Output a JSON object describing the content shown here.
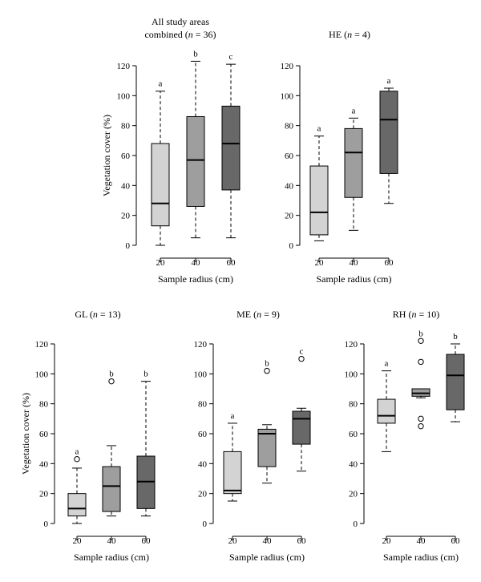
{
  "chart_data": [
    {
      "id": "all",
      "type": "box",
      "title_lines": [
        "All study areas",
        "combined (n = 36)"
      ],
      "title_rich": [
        [
          {
            "t": "All study areas",
            "i": false
          }
        ],
        [
          {
            "t": "combined (",
            "i": false
          },
          {
            "t": "n",
            "i": true
          },
          {
            "t": " = 36)",
            "i": false
          }
        ]
      ],
      "xlabel": "Sample radius (cm)",
      "ylabel": "Vegetation cover (%)",
      "categories": [
        "20",
        "40",
        "60"
      ],
      "yticks": [
        0,
        20,
        40,
        60,
        80,
        100,
        120
      ],
      "ylim": [
        0,
        120
      ],
      "boxes": [
        {
          "category": "20",
          "whisker_low": 0,
          "q1": 13,
          "median": 28,
          "q3": 68,
          "whisker_high": 103,
          "outliers": [],
          "letter": "a",
          "fill": "#d3d3d3"
        },
        {
          "category": "40",
          "whisker_low": 5,
          "q1": 26,
          "median": 57,
          "q3": 86,
          "whisker_high": 123,
          "outliers": [],
          "letter": "b",
          "fill": "#9e9e9e"
        },
        {
          "category": "60",
          "whisker_low": 5,
          "q1": 37,
          "median": 68,
          "q3": 93,
          "whisker_high": 121,
          "outliers": [],
          "letter": "c",
          "fill": "#686868"
        }
      ]
    },
    {
      "id": "he",
      "type": "box",
      "title_lines": [
        "HE (n = 4)"
      ],
      "title_rich": [
        [
          {
            "t": "HE (",
            "i": false
          },
          {
            "t": "n",
            "i": true
          },
          {
            "t": " = 4)",
            "i": false
          }
        ]
      ],
      "xlabel": "Sample radius (cm)",
      "ylabel": "",
      "categories": [
        "20",
        "40",
        "60"
      ],
      "yticks": [
        0,
        20,
        40,
        60,
        80,
        100,
        120
      ],
      "ylim": [
        0,
        120
      ],
      "boxes": [
        {
          "category": "20",
          "whisker_low": 3,
          "q1": 7,
          "median": 22,
          "q3": 53,
          "whisker_high": 73,
          "outliers": [],
          "letter": "a",
          "fill": "#d3d3d3"
        },
        {
          "category": "40",
          "whisker_low": 10,
          "q1": 32,
          "median": 62,
          "q3": 78,
          "whisker_high": 85,
          "outliers": [],
          "letter": "a",
          "fill": "#9e9e9e"
        },
        {
          "category": "60",
          "whisker_low": 28,
          "q1": 48,
          "median": 84,
          "q3": 103,
          "whisker_high": 105,
          "outliers": [],
          "letter": "a",
          "fill": "#686868"
        }
      ]
    },
    {
      "id": "gl",
      "type": "box",
      "title_lines": [
        "GL (n = 13)"
      ],
      "title_rich": [
        [
          {
            "t": "GL (",
            "i": false
          },
          {
            "t": "n",
            "i": true
          },
          {
            "t": " = 13)",
            "i": false
          }
        ]
      ],
      "xlabel": "Sample radius (cm)",
      "ylabel": "Vegetation cover (%)",
      "categories": [
        "20",
        "40",
        "60"
      ],
      "yticks": [
        0,
        20,
        40,
        60,
        80,
        100,
        120
      ],
      "ylim": [
        0,
        120
      ],
      "boxes": [
        {
          "category": "20",
          "whisker_low": 0,
          "q1": 5,
          "median": 10,
          "q3": 20,
          "whisker_high": 37,
          "outliers": [
            43
          ],
          "letter": "a",
          "fill": "#d3d3d3"
        },
        {
          "category": "40",
          "whisker_low": 5,
          "q1": 8,
          "median": 25,
          "q3": 38,
          "whisker_high": 52,
          "outliers": [
            95
          ],
          "letter": "b",
          "fill": "#9e9e9e"
        },
        {
          "category": "60",
          "whisker_low": 5,
          "q1": 10,
          "median": 28,
          "q3": 45,
          "whisker_high": 95,
          "outliers": [],
          "letter": "b",
          "fill": "#686868"
        }
      ]
    },
    {
      "id": "me",
      "type": "box",
      "title_lines": [
        "ME (n = 9)"
      ],
      "title_rich": [
        [
          {
            "t": "ME (",
            "i": false
          },
          {
            "t": "n",
            "i": true
          },
          {
            "t": " = 9)",
            "i": false
          }
        ]
      ],
      "xlabel": "Sample radius (cm)",
      "ylabel": "",
      "categories": [
        "20",
        "40",
        "60"
      ],
      "yticks": [
        0,
        20,
        40,
        60,
        80,
        100,
        120
      ],
      "ylim": [
        0,
        120
      ],
      "boxes": [
        {
          "category": "20",
          "whisker_low": 15,
          "q1": 20,
          "median": 22,
          "q3": 48,
          "whisker_high": 67,
          "outliers": [],
          "letter": "a",
          "fill": "#d3d3d3"
        },
        {
          "category": "40",
          "whisker_low": 27,
          "q1": 38,
          "median": 60,
          "q3": 63,
          "whisker_high": 66,
          "outliers": [
            102
          ],
          "letter": "b",
          "fill": "#9e9e9e"
        },
        {
          "category": "60",
          "whisker_low": 35,
          "q1": 53,
          "median": 70,
          "q3": 75,
          "whisker_high": 77,
          "outliers": [
            110
          ],
          "letter": "c",
          "fill": "#686868"
        }
      ]
    },
    {
      "id": "rh",
      "type": "box",
      "title_lines": [
        "RH (n = 10)"
      ],
      "title_rich": [
        [
          {
            "t": "RH (",
            "i": false
          },
          {
            "t": "n",
            "i": true
          },
          {
            "t": " = 10)",
            "i": false
          }
        ]
      ],
      "xlabel": "Sample radius (cm)",
      "ylabel": "",
      "categories": [
        "20",
        "40",
        "60"
      ],
      "yticks": [
        0,
        20,
        40,
        60,
        80,
        100,
        120
      ],
      "ylim": [
        0,
        120
      ],
      "boxes": [
        {
          "category": "20",
          "whisker_low": 48,
          "q1": 67,
          "median": 72,
          "q3": 83,
          "whisker_high": 102,
          "outliers": [],
          "letter": "a",
          "fill": "#d3d3d3"
        },
        {
          "category": "40",
          "whisker_low": 84,
          "q1": 85,
          "median": 87,
          "q3": 90,
          "whisker_high": 90,
          "outliers": [
            122,
            108,
            70,
            65
          ],
          "letter": "b",
          "fill": "#9e9e9e"
        },
        {
          "category": "60",
          "whisker_low": 68,
          "q1": 76,
          "median": 99,
          "q3": 113,
          "whisker_high": 120,
          "outliers": [],
          "letter": "b",
          "fill": "#686868"
        }
      ]
    }
  ]
}
